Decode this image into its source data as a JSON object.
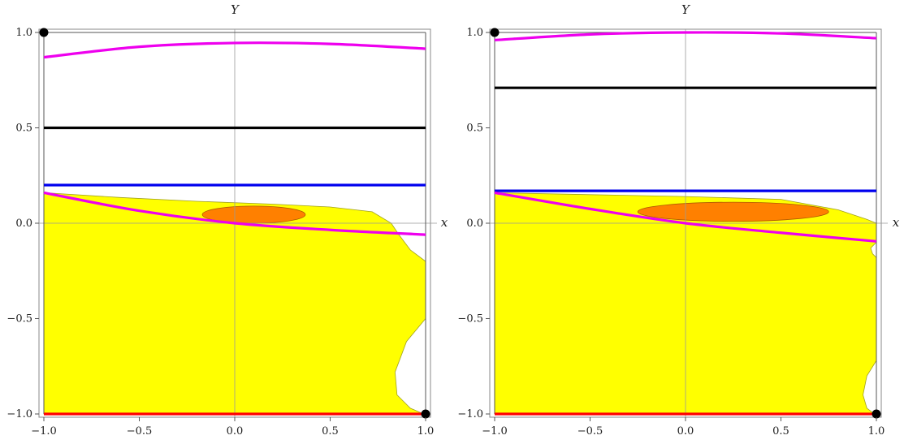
{
  "chart_data": [
    {
      "type": "region-plot",
      "xlabel": "x",
      "ylabel": "Y",
      "xlim": [
        -1,
        1
      ],
      "ylim": [
        -1,
        1
      ],
      "xticks": [
        "-1.0",
        "-0.5",
        "0.0",
        "0.5",
        "1.0"
      ],
      "yticks": [
        "-1.0",
        "-0.5",
        "0.0",
        "0.5",
        "1.0"
      ],
      "xtick_values": [
        -1,
        -0.5,
        0,
        0.5,
        1
      ],
      "ytick_values": [
        -1,
        -0.5,
        0,
        0.5,
        1
      ],
      "regions": [
        {
          "color": "#ffff00",
          "boundary": [
            [
              -1,
              -1
            ],
            [
              -1,
              0.16
            ],
            [
              -0.6,
              0.135
            ],
            [
              -0.2,
              0.115
            ],
            [
              0.2,
              0.1
            ],
            [
              0.5,
              0.085
            ],
            [
              0.72,
              0.06
            ],
            [
              0.82,
              0.0
            ],
            [
              0.86,
              -0.06
            ],
            [
              0.92,
              -0.14
            ],
            [
              1.0,
              -0.2
            ],
            [
              1.0,
              -0.5
            ],
            [
              0.9,
              -0.62
            ],
            [
              0.84,
              -0.78
            ],
            [
              0.85,
              -0.9
            ],
            [
              0.92,
              -0.97
            ],
            [
              0.99,
              -1.0
            ]
          ],
          "holes": []
        },
        {
          "color": "#ff8000",
          "ellipse": {
            "cx": 0.1,
            "cy": 0.045,
            "rx": 0.27,
            "ry": 0.045
          }
        }
      ],
      "series": [
        {
          "color": "#ee00ee",
          "x": [
            -1,
            -0.5,
            0,
            0.5,
            1
          ],
          "y": [
            0.87,
            0.925,
            0.945,
            0.94,
            0.915
          ]
        },
        {
          "color": "#000000",
          "x": [
            -1,
            1
          ],
          "y": [
            0.5,
            0.5
          ]
        },
        {
          "color": "#0000ee",
          "x": [
            -1,
            1
          ],
          "y": [
            0.2,
            0.2
          ]
        },
        {
          "color": "#ee00ee",
          "x": [
            -1,
            -0.5,
            0,
            0.5,
            1
          ],
          "y": [
            0.16,
            0.065,
            0.0,
            -0.035,
            -0.06
          ]
        },
        {
          "color": "#ff0000",
          "x": [
            -1,
            1
          ],
          "y": [
            -1,
            -1
          ]
        }
      ],
      "points": [
        [
          -1,
          1
        ],
        [
          1,
          -1
        ]
      ],
      "grid": false
    },
    {
      "type": "region-plot",
      "xlabel": "x",
      "ylabel": "Y",
      "xlim": [
        -1,
        1
      ],
      "ylim": [
        -1,
        1
      ],
      "xticks": [
        "-1.0",
        "-0.5",
        "0.0",
        "0.5",
        "1.0"
      ],
      "yticks": [
        "-1.0",
        "-0.5",
        "0.0",
        "0.5",
        "1.0"
      ],
      "xtick_values": [
        -1,
        -0.5,
        0,
        0.5,
        1
      ],
      "ytick_values": [
        -1,
        -0.5,
        0,
        0.5,
        1
      ],
      "regions": [
        {
          "color": "#ffff00",
          "boundary": [
            [
              -1,
              -1
            ],
            [
              -1,
              0.16
            ],
            [
              -0.5,
              0.15
            ],
            [
              0,
              0.14
            ],
            [
              0.5,
              0.125
            ],
            [
              0.8,
              0.07
            ],
            [
              0.95,
              0.02
            ],
            [
              1.0,
              0.0
            ],
            [
              1.0,
              -0.1
            ],
            [
              0.97,
              -0.13
            ],
            [
              0.98,
              -0.16
            ],
            [
              1.0,
              -0.18
            ],
            [
              1.0,
              -0.72
            ],
            [
              0.95,
              -0.8
            ],
            [
              0.93,
              -0.9
            ],
            [
              0.95,
              -0.97
            ],
            [
              0.99,
              -1.0
            ]
          ]
        },
        {
          "color": "#ff8000",
          "ellipse": {
            "cx": 0.25,
            "cy": 0.06,
            "rx": 0.5,
            "ry": 0.05
          }
        }
      ],
      "series": [
        {
          "color": "#ee00ee",
          "x": [
            -1,
            -0.5,
            0,
            0.5,
            1
          ],
          "y": [
            0.96,
            0.99,
            1.0,
            0.995,
            0.97
          ]
        },
        {
          "color": "#000000",
          "x": [
            -1,
            1
          ],
          "y": [
            0.71,
            0.71
          ]
        },
        {
          "color": "#0000ee",
          "x": [
            -1,
            1
          ],
          "y": [
            0.17,
            0.17
          ]
        },
        {
          "color": "#ee00ee",
          "x": [
            -1,
            -0.5,
            0,
            0.5,
            1
          ],
          "y": [
            0.16,
            0.075,
            0.0,
            -0.05,
            -0.095
          ]
        },
        {
          "color": "#ff0000",
          "x": [
            -1,
            1
          ],
          "y": [
            -1,
            -1
          ]
        }
      ],
      "points": [
        [
          -1,
          1
        ],
        [
          1,
          -1
        ]
      ],
      "grid": false
    }
  ]
}
